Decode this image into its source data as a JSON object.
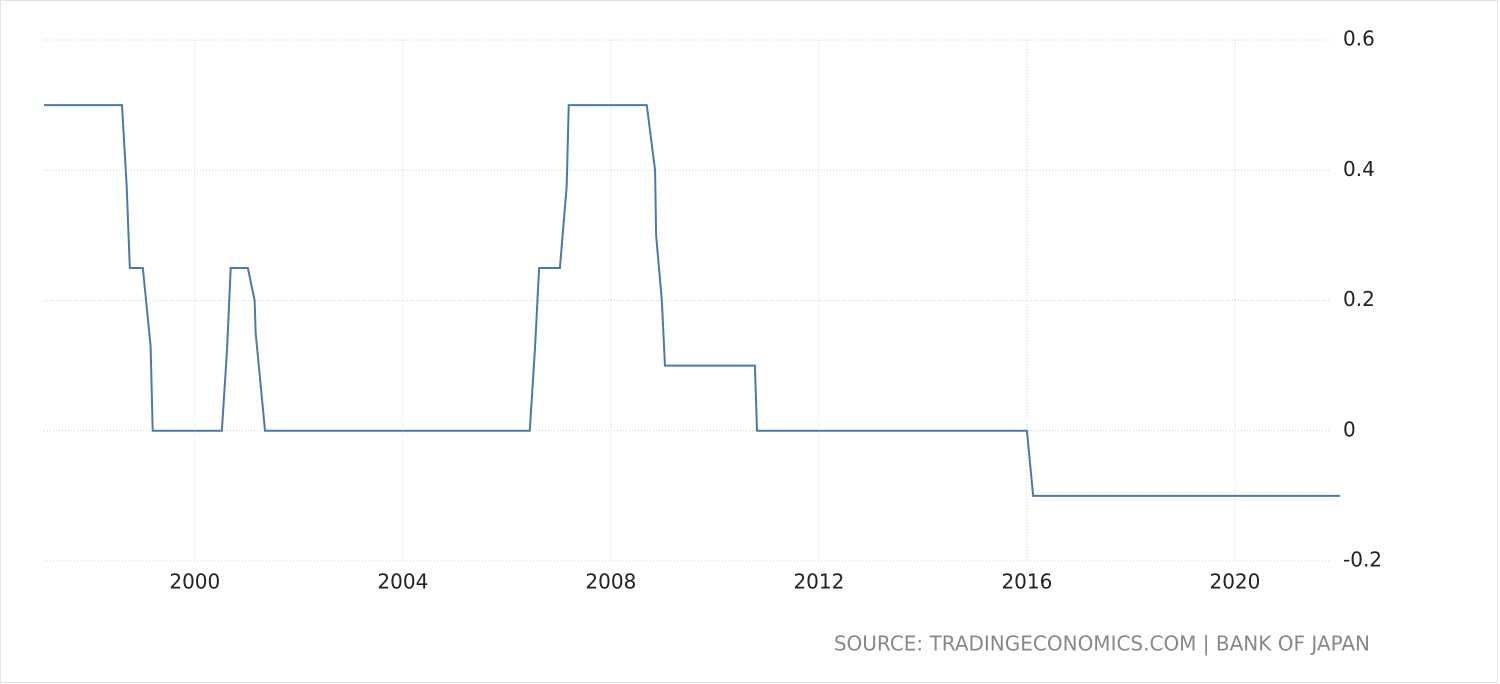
{
  "chart_data": {
    "type": "line",
    "source": "SOURCE: TRADINGECONOMICS.COM | BANK OF JAPAN",
    "color": "#4d79a8",
    "x": [
      1997.1,
      1998.6,
      1998.69,
      1998.75,
      1999.0,
      1999.15,
      1999.19,
      2000.52,
      2000.62,
      2000.69,
      2001.02,
      2001.15,
      2001.17,
      2001.35,
      2006.44,
      2006.54,
      2006.62,
      2007.02,
      2007.15,
      2007.19,
      2008.69,
      2008.85,
      2008.87,
      2008.98,
      2009.04,
      2010.77,
      2010.81,
      2016.0,
      2016.12,
      2022.02
    ],
    "values": [
      0.5,
      0.5,
      0.375,
      0.25,
      0.25,
      0.13,
      0,
      0,
      0.125,
      0.25,
      0.25,
      0.2,
      0.15,
      0,
      0,
      0.125,
      0.25,
      0.25,
      0.375,
      0.5,
      0.5,
      0.4,
      0.3,
      0.2,
      0.1,
      0.1,
      0,
      0,
      -0.1,
      -0.1
    ],
    "xlim": [
      1997.1,
      2022.02
    ],
    "xticks": [
      2000,
      2004,
      2008,
      2012,
      2016,
      2020
    ],
    "ylim": [
      -0.2,
      0.6
    ],
    "yticks": [
      -0.2,
      0,
      0.2,
      0.4,
      0.6
    ],
    "grid": true
  }
}
